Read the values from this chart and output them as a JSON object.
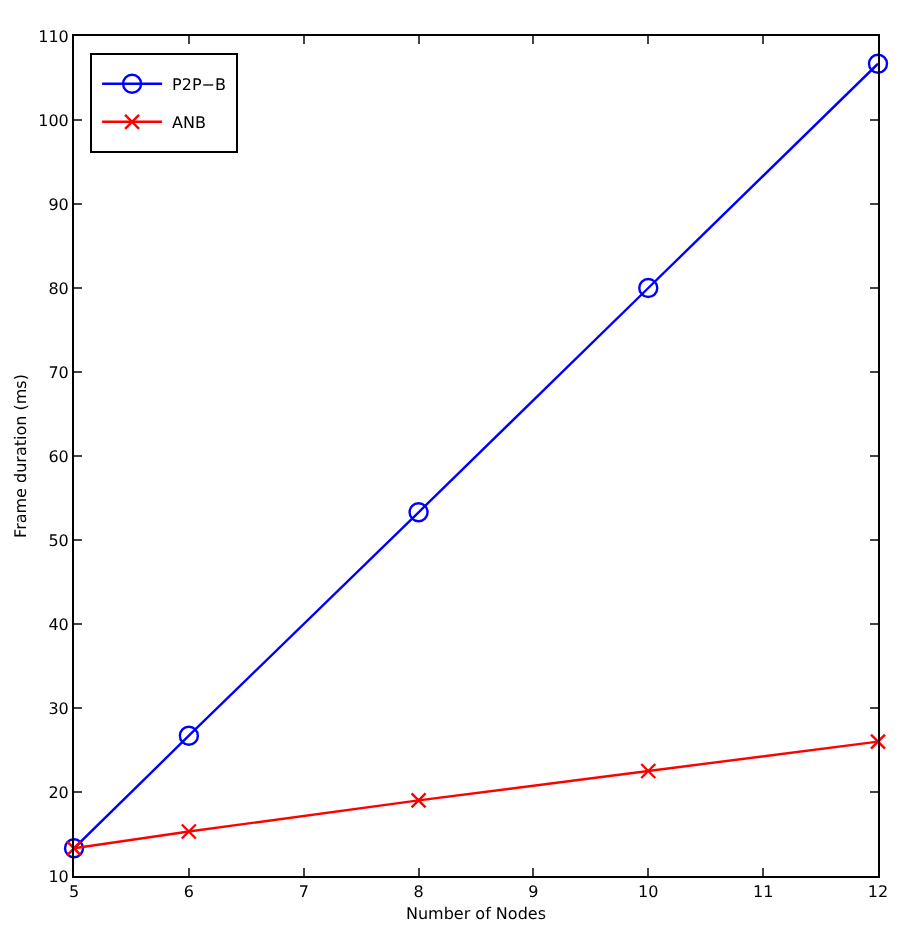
{
  "chart_data": {
    "type": "line",
    "xlabel": "Number of Nodes",
    "ylabel": "Frame duration (ms)",
    "x": [
      5,
      6,
      8,
      10,
      12
    ],
    "series": [
      {
        "name": "P2P−B",
        "color": "#0000ff",
        "marker": "circle",
        "values": [
          13.3,
          26.7,
          53.3,
          80.0,
          106.7
        ]
      },
      {
        "name": "ANB",
        "color": "#ff0000",
        "marker": "cross",
        "values": [
          13.3,
          15.3,
          19.0,
          22.5,
          26.0
        ]
      }
    ],
    "xlim": [
      5,
      12
    ],
    "xticks": [
      5,
      6,
      7,
      8,
      9,
      10,
      11,
      12
    ],
    "ylim": [
      10,
      110
    ],
    "yticks": [
      10,
      20,
      30,
      40,
      50,
      60,
      70,
      80,
      90,
      100,
      110
    ],
    "legend": "top left",
    "line_style": "solid"
  }
}
